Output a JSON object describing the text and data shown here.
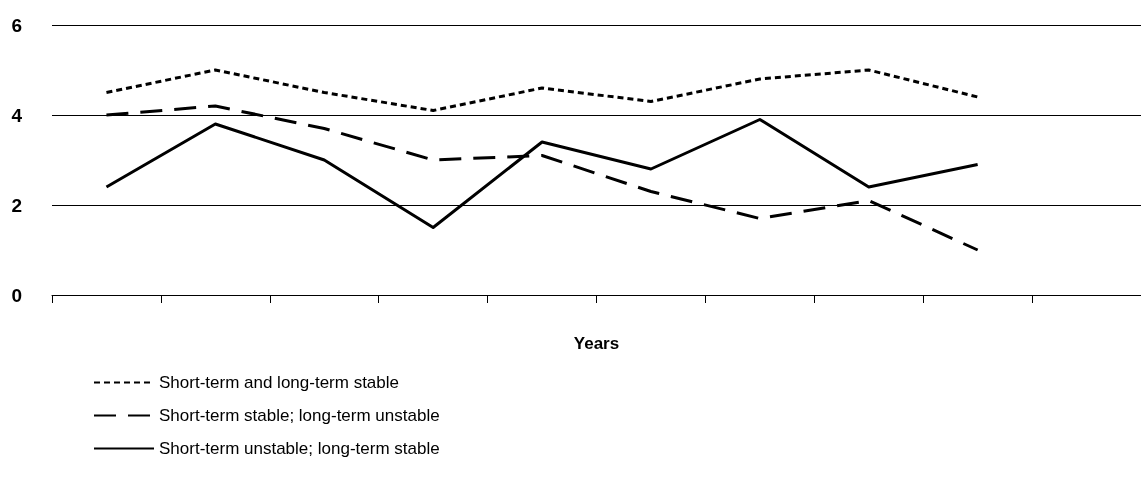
{
  "chart_data": {
    "type": "line",
    "xlabel": "Years",
    "categories": [
      null,
      null,
      null,
      null,
      null,
      null,
      null,
      null,
      null,
      null
    ],
    "ylim": [
      0,
      6
    ],
    "yticks": [
      0,
      2,
      4,
      6
    ],
    "grid": "y",
    "legend": "bottom left",
    "marker": "none",
    "series": [
      {
        "name": "Short-term and long-term stable",
        "color": "#000000",
        "line_style": "dotted",
        "values": [
          4.5,
          5.0,
          4.5,
          4.1,
          4.6,
          4.3,
          4.8,
          5.0,
          4.4,
          null
        ]
      },
      {
        "name": "Short-term stable; long-term unstable",
        "color": "#000000",
        "line_style": "dashed",
        "values": [
          4.0,
          4.2,
          3.7,
          3.0,
          3.1,
          2.3,
          1.7,
          2.1,
          1.0,
          null
        ]
      },
      {
        "name": "Short-term unstable; long-term stable",
        "color": "#000000",
        "line_style": "solid",
        "values": [
          2.4,
          3.8,
          3.0,
          1.5,
          3.4,
          2.8,
          3.9,
          2.4,
          2.9,
          null
        ]
      }
    ]
  }
}
